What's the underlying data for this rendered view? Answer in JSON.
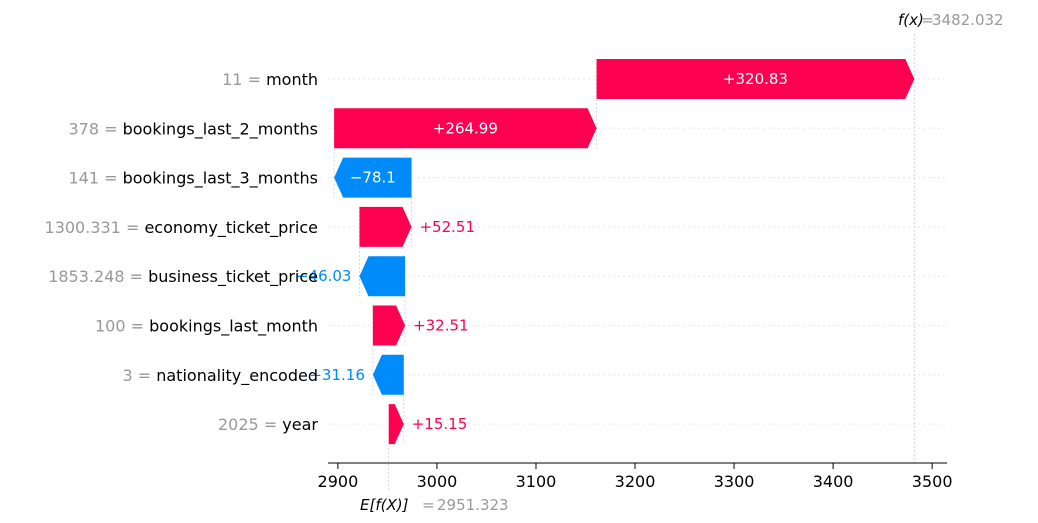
{
  "chart_data": {
    "type": "waterfall",
    "fx_label": "f(x)",
    "fx_value": "3482.032",
    "base_label": "E[f(X)]",
    "base_value": "2951.323",
    "base_numeric": 2951.323,
    "xlim": [
      2890,
      3515
    ],
    "xticks": [
      2900,
      3000,
      3100,
      3200,
      3300,
      3400,
      3500
    ],
    "tick_labels": [
      "2900",
      "3000",
      "3100",
      "3200",
      "3300",
      "3400",
      "3500"
    ],
    "colors": {
      "positive": "#ff0051",
      "negative": "#008bfb",
      "feature_value": "#999999"
    },
    "features": [
      {
        "value": "11",
        "name": "month",
        "shap": 320.83,
        "label": "+320.83"
      },
      {
        "value": "378",
        "name": "bookings_last_2_months",
        "shap": 264.99,
        "label": "+264.99"
      },
      {
        "value": "141",
        "name": "bookings_last_3_months",
        "shap": -78.1,
        "label": "−78.1"
      },
      {
        "value": "1300.331",
        "name": "economy_ticket_price",
        "shap": 52.51,
        "label": "+52.51"
      },
      {
        "value": "1853.248",
        "name": "business_ticket_price",
        "shap": -46.03,
        "label": "−46.03"
      },
      {
        "value": "100",
        "name": "bookings_last_month",
        "shap": 32.51,
        "label": "+32.51"
      },
      {
        "value": "3",
        "name": "nationality_encoded",
        "shap": -31.16,
        "label": "−31.16"
      },
      {
        "value": "2025",
        "name": "year",
        "shap": 15.15,
        "label": "+15.15"
      }
    ]
  }
}
